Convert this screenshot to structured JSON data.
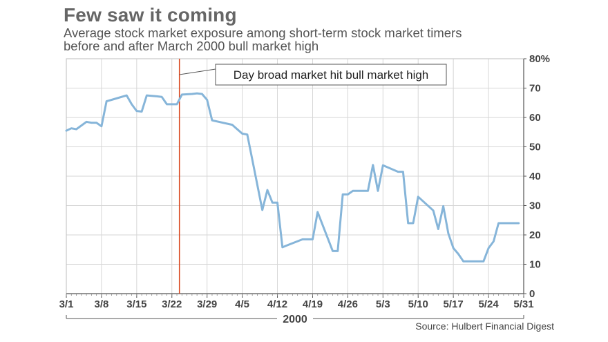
{
  "header": {
    "title": "Few saw it coming",
    "subtitle_line1": "Average stock market exposure among short-term stock market timers",
    "subtitle_line2": "before and after March 2000 bull market high"
  },
  "footer": {
    "source": "Source: Hulbert Financial Digest"
  },
  "colors": {
    "line": "#86b5d9",
    "marker_line": "#d9421a",
    "grid": "#d6d6d6",
    "axis": "#555555"
  },
  "chart_data": {
    "type": "line",
    "title": "Few saw it coming",
    "x_unit": "day of year 2000 (1 = Mar 1, 32 = Apr 1, 62 = May 1)",
    "x_tick_labels": [
      "3/1",
      "3/8",
      "3/15",
      "3/22",
      "3/29",
      "4/5",
      "4/12",
      "4/19",
      "4/26",
      "5/3",
      "5/10",
      "5/17",
      "5/24",
      "5/31"
    ],
    "x_tick_positions": [
      1,
      8,
      15,
      22,
      29,
      36,
      43,
      50,
      57,
      64,
      71,
      78,
      85,
      92
    ],
    "x_group_label": "2000",
    "xlim": [
      1,
      92
    ],
    "ylim": [
      0,
      80
    ],
    "y_ticks": [
      0,
      10,
      20,
      30,
      40,
      50,
      60,
      70,
      80
    ],
    "y_tick_labels": [
      "0",
      "10",
      "20",
      "30",
      "40",
      "50",
      "60",
      "70",
      "80%"
    ],
    "grid": true,
    "series": [
      {
        "x": [
          1,
          2,
          3,
          5,
          6,
          7,
          8,
          9,
          10,
          13,
          14,
          15,
          16,
          17,
          19,
          20,
          21,
          22,
          23,
          24,
          26,
          27,
          28,
          29,
          30,
          34,
          35,
          36,
          37,
          40,
          41,
          42,
          43,
          44,
          45,
          48,
          50,
          51,
          54,
          55,
          56,
          57,
          58,
          61,
          62,
          63,
          64,
          67,
          68,
          69,
          70,
          71,
          74,
          75,
          76,
          77,
          78,
          79,
          80,
          83,
          84,
          85,
          86,
          87,
          90,
          91
        ],
        "y": [
          55.5,
          56.3,
          56,
          58.5,
          58.2,
          58.2,
          57,
          65.5,
          66,
          67.5,
          64.5,
          62.2,
          62,
          67.5,
          67.2,
          67,
          64.5,
          64.5,
          64.5,
          67.8,
          68,
          68.2,
          68,
          66,
          59,
          57.5,
          56,
          54.5,
          54.2,
          28.5,
          35.3,
          31,
          31,
          15.8,
          16.5,
          18.5,
          18.5,
          27.8,
          14.5,
          14.5,
          33.8,
          33.8,
          35,
          35,
          43.8,
          35,
          43.7,
          41.5,
          41.5,
          24,
          24,
          33,
          28.3,
          22,
          29.8,
          20.5,
          15.5,
          13.5,
          11,
          11,
          11,
          15.5,
          17.8,
          24,
          24,
          24
        ]
      }
    ],
    "annotations": [
      {
        "x": 23.5,
        "text": "Day broad market hit bull market high"
      }
    ]
  }
}
